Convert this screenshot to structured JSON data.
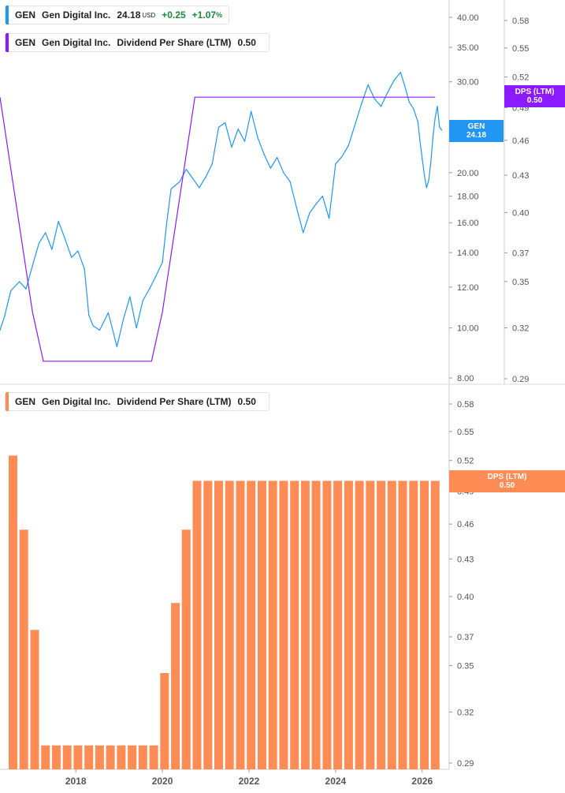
{
  "legend_price": {
    "ticker": "GEN",
    "company": "Gen Digital Inc.",
    "price": "24.18",
    "currency": "USD",
    "change": "+0.25",
    "change_pct": "+1.07",
    "pct_sign": "%",
    "color": "#2196f3"
  },
  "legend_dps_top": {
    "ticker": "GEN",
    "company": "Gen Digital Inc.",
    "metric": "Dividend Per Share (LTM)",
    "value": "0.50",
    "color": "#8c1aff"
  },
  "legend_dps_bottom": {
    "ticker": "GEN",
    "company": "Gen Digital Inc.",
    "metric": "Dividend Per Share (LTM)",
    "value": "0.50",
    "color": "#ff8c55"
  },
  "tags": {
    "dps_top_label": "DPS (LTM)",
    "dps_top_value": "0.50",
    "price_label": "GEN",
    "price_value": "24.18",
    "dps_bottom_label": "DPS (LTM)",
    "dps_bottom_value": "0.50"
  },
  "chart_data": [
    {
      "type": "line",
      "scale": "log",
      "ylim": [
        8,
        40
      ],
      "yticks": [
        "40.00",
        "35.00",
        "30.00",
        "25",
        "20.00",
        "18.00",
        "16.00",
        "14.00",
        "12.00",
        "10.00",
        "8.00"
      ],
      "series": [
        {
          "name": "GEN",
          "color": "#2196f3",
          "x": [
            2016.25,
            2016.35,
            2016.5,
            2016.7,
            2016.85,
            2017.0,
            2017.15,
            2017.3,
            2017.45,
            2017.6,
            2017.75,
            2017.9,
            2018.05,
            2018.2,
            2018.3,
            2018.4,
            2018.55,
            2018.75,
            2018.95,
            2019.1,
            2019.25,
            2019.4,
            2019.55,
            2019.7,
            2019.85,
            2020.0,
            2020.1,
            2020.2,
            2020.4,
            2020.55,
            2020.7,
            2020.85,
            2021.0,
            2021.15,
            2021.3,
            2021.45,
            2021.6,
            2021.75,
            2021.9,
            2022.05,
            2022.2,
            2022.35,
            2022.5,
            2022.65,
            2022.8,
            2022.95,
            2023.1,
            2023.25,
            2023.4,
            2023.55,
            2023.7,
            2023.85,
            2024.0,
            2024.15,
            2024.3,
            2024.45,
            2024.6,
            2024.75,
            2024.9,
            2025.05,
            2025.2,
            2025.35,
            2025.5,
            2025.6,
            2025.7,
            2025.8,
            2025.9,
            2025.95,
            2026.0,
            2026.05,
            2026.1,
            2026.15,
            2026.2,
            2026.25,
            2026.3,
            2026.35,
            2026.4,
            2026.45
          ],
          "y": [
            9.9,
            10.5,
            11.8,
            12.3,
            11.9,
            13.2,
            14.6,
            15.3,
            14.2,
            16.1,
            14.9,
            13.7,
            14.1,
            13.0,
            10.6,
            10.1,
            9.9,
            10.7,
            9.2,
            10.4,
            11.5,
            10.0,
            11.3,
            11.9,
            12.6,
            13.4,
            16.0,
            18.6,
            19.2,
            20.3,
            19.5,
            18.7,
            19.6,
            20.8,
            24.5,
            25.0,
            22.4,
            24.3,
            23.0,
            26.3,
            23.4,
            21.7,
            20.4,
            21.4,
            20.0,
            19.2,
            17.1,
            15.3,
            16.7,
            17.4,
            18.0,
            16.3,
            20.8,
            21.5,
            22.6,
            24.8,
            27.2,
            29.6,
            27.8,
            26.9,
            28.6,
            30.2,
            31.3,
            29.4,
            27.4,
            26.6,
            25.1,
            23.0,
            21.3,
            19.8,
            18.7,
            19.3,
            21.0,
            23.5,
            25.6,
            26.9,
            24.5,
            24.18
          ]
        },
        {
          "name": "DPS (LTM)",
          "color": "#8c1aff",
          "axis": "right",
          "x": [
            2016.25,
            2017.0,
            2017.25,
            2019.75,
            2020.0,
            2020.75,
            2026.3
          ],
          "y": [
            0.5,
            0.33,
            0.3,
            0.3,
            0.33,
            0.5,
            0.5
          ]
        }
      ],
      "right_axis": {
        "ylim": [
          0.29,
          0.6
        ],
        "yticks": [
          "0.58",
          "0.55",
          "0.52",
          "0.49",
          "0.46",
          "0.43",
          "0.40",
          "0.37",
          "0.35",
          "0.32",
          "0.29"
        ]
      }
    },
    {
      "type": "bar",
      "scale": "log",
      "ylim": [
        0.29,
        0.6
      ],
      "yticks": [
        "0.58",
        "0.55",
        "0.52",
        "0.49",
        "0.46",
        "0.43",
        "0.40",
        "0.37",
        "0.35",
        "0.32",
        "0.29"
      ],
      "xticks": [
        "2018",
        "2020",
        "2022",
        "2024",
        "2026"
      ],
      "series": [
        {
          "name": "DPS (LTM)",
          "color": "#ff8c55",
          "x": [
            2016.55,
            2016.8,
            2017.05,
            2017.3,
            2017.55,
            2017.8,
            2018.05,
            2018.3,
            2018.55,
            2018.8,
            2019.05,
            2019.3,
            2019.55,
            2019.8,
            2020.05,
            2020.3,
            2020.55,
            2020.8,
            2021.05,
            2021.3,
            2021.55,
            2021.8,
            2022.05,
            2022.3,
            2022.55,
            2022.8,
            2023.05,
            2023.3,
            2023.55,
            2023.8,
            2024.05,
            2024.3,
            2024.55,
            2024.8,
            2025.05,
            2025.3,
            2025.55,
            2025.8,
            2026.05,
            2026.3
          ],
          "values": [
            0.525,
            0.455,
            0.375,
            0.3,
            0.3,
            0.3,
            0.3,
            0.3,
            0.3,
            0.3,
            0.3,
            0.3,
            0.3,
            0.3,
            0.345,
            0.395,
            0.455,
            0.5,
            0.5,
            0.5,
            0.5,
            0.5,
            0.5,
            0.5,
            0.5,
            0.5,
            0.5,
            0.5,
            0.5,
            0.5,
            0.5,
            0.5,
            0.5,
            0.5,
            0.5,
            0.5,
            0.5,
            0.5,
            0.5,
            0.5
          ]
        }
      ]
    }
  ]
}
